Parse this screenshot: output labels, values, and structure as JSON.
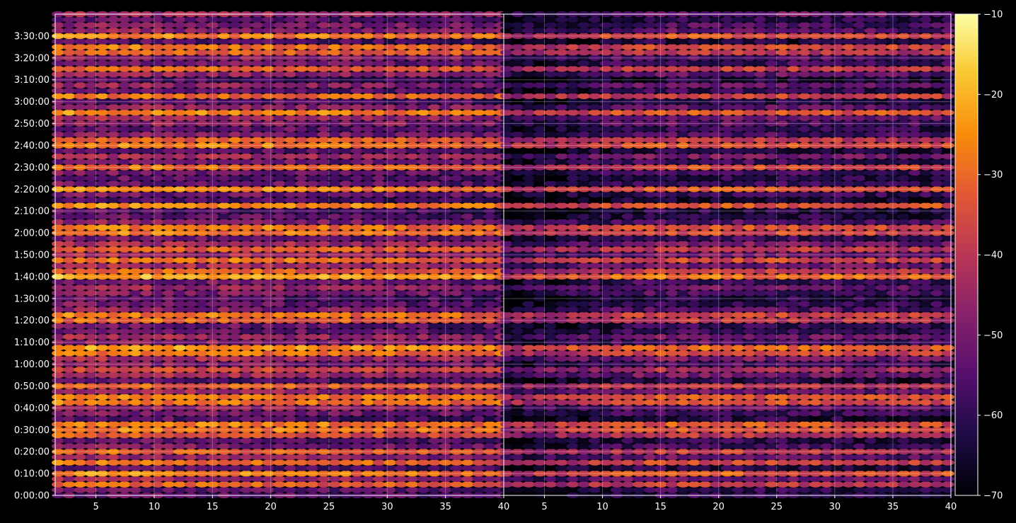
{
  "chart_data": {
    "type": "heatmap",
    "title": "",
    "xlabel": "",
    "ylabel": "",
    "colormap": "inferno",
    "grid": true,
    "panels": [
      {
        "name": "",
        "xlim": [
          1.5,
          40
        ],
        "x_ticks": [
          5,
          10,
          15,
          20,
          25,
          30,
          35,
          40
        ]
      },
      {
        "name": "",
        "xlim": [
          1.5,
          40
        ],
        "x_ticks": [
          5,
          10,
          15,
          20,
          25,
          30,
          35,
          40
        ]
      }
    ],
    "y_ticks": [
      "0:00:00",
      "0:10:00",
      "0:20:00",
      "0:30:00",
      "0:40:00",
      "0:50:00",
      "1:00:00",
      "1:10:00",
      "1:20:00",
      "1:30:00",
      "1:40:00",
      "1:50:00",
      "2:00:00",
      "2:10:00",
      "2:20:00",
      "2:30:00",
      "2:40:00",
      "2:50:00",
      "3:00:00",
      "3:10:00",
      "3:20:00",
      "3:30:00"
    ],
    "ylim_minutes": [
      0,
      220
    ],
    "colorbar": {
      "min": -70,
      "max": -10,
      "ticks": [
        -70,
        -60,
        -50,
        -40,
        -30,
        -20,
        -10
      ],
      "tick_labels": [
        "−70",
        "−60",
        "−50",
        "−40",
        "−30",
        "−20",
        "−10"
      ]
    },
    "row_interval_minutes": 2.5,
    "bright_rows_minutes": [
      {
        "t": 5,
        "v": -30
      },
      {
        "t": 10,
        "v": -24
      },
      {
        "t": 15,
        "v": -28
      },
      {
        "t": 20,
        "v": -30
      },
      {
        "t": 27.5,
        "v": -32
      },
      {
        "t": 30,
        "v": -26
      },
      {
        "t": 32.5,
        "v": -25
      },
      {
        "t": 42.5,
        "v": -26
      },
      {
        "t": 45,
        "v": -25
      },
      {
        "t": 50,
        "v": -30
      },
      {
        "t": 57.5,
        "v": -34
      },
      {
        "t": 65,
        "v": -27
      },
      {
        "t": 67.5,
        "v": -22
      },
      {
        "t": 80,
        "v": -30
      },
      {
        "t": 82.5,
        "v": -27
      },
      {
        "t": 100,
        "v": -20
      },
      {
        "t": 102.5,
        "v": -30
      },
      {
        "t": 107.5,
        "v": -27
      },
      {
        "t": 112.5,
        "v": -30
      },
      {
        "t": 120,
        "v": -27
      },
      {
        "t": 122.5,
        "v": -26
      },
      {
        "t": 132.5,
        "v": -24
      },
      {
        "t": 140,
        "v": -25
      },
      {
        "t": 150,
        "v": -27
      },
      {
        "t": 160,
        "v": -25
      },
      {
        "t": 162.5,
        "v": -30
      },
      {
        "t": 175,
        "v": -24
      },
      {
        "t": 182.5,
        "v": -28
      },
      {
        "t": 195,
        "v": -30
      },
      {
        "t": 202.5,
        "v": -30
      },
      {
        "t": 205,
        "v": -27
      },
      {
        "t": 210,
        "v": -25
      }
    ],
    "panel_offset_db": [
      0,
      -6
    ]
  }
}
